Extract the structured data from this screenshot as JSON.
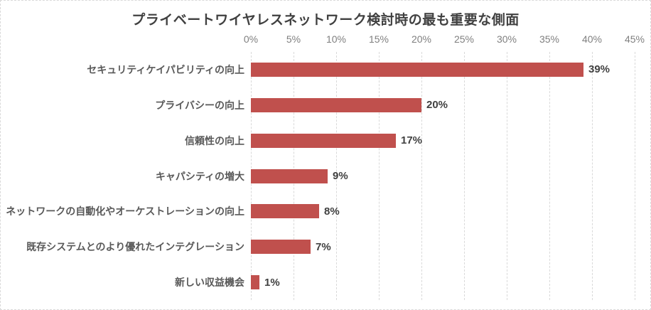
{
  "chart_data": {
    "type": "bar",
    "orientation": "horizontal",
    "title": "プライベートワイヤレスネットワーク検討時の最も重要な側面",
    "categories": [
      "セキュリティケイパビリティの向上",
      "プライバシーの向上",
      "信頼性の向上",
      "キャパシティの増大",
      "ネットワークの自動化やオーケストレーションの向上",
      "既存システムとのより優れたインテグレーション",
      "新しい収益機会"
    ],
    "values": [
      39,
      20,
      17,
      9,
      8,
      7,
      1
    ],
    "data_labels": [
      "39%",
      "20%",
      "17%",
      "9%",
      "8%",
      "7%",
      "1%"
    ],
    "x_axis": {
      "position": "top",
      "min": 0,
      "max": 45,
      "step": 5,
      "ticks": [
        "0%",
        "5%",
        "10%",
        "15%",
        "20%",
        "25%",
        "30%",
        "35%",
        "40%",
        "45%"
      ]
    },
    "grid": "vertical-dashed",
    "legend": "none",
    "colors": {
      "bar": "#c0504d",
      "title": "#404040",
      "category_label": "#595959",
      "tick_label": "#7f7f7f",
      "value_label": "#404040",
      "gridline": "#d9d9d9"
    }
  }
}
